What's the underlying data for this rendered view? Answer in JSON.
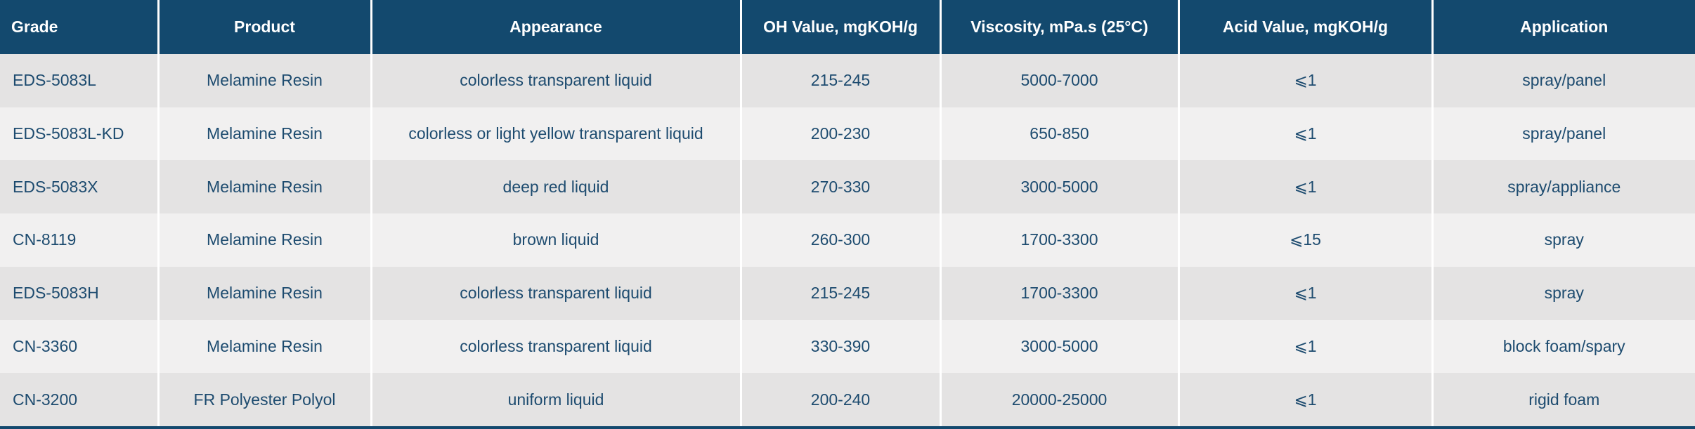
{
  "colors": {
    "header_bg": "#13496e",
    "header_text": "#ffffff",
    "body_text": "#1d4b6f",
    "row_odd_bg": "#e4e3e3",
    "row_even_bg": "#f1f0f0",
    "cell_divider": "#ffffff",
    "bottom_border": "#13496e"
  },
  "table": {
    "headers": [
      "Grade",
      "Product",
      "Appearance",
      "OH Value, mgKOH/g",
      "Viscosity, mPa.s (25°C)",
      "Acid Value, mgKOH/g",
      "Application"
    ],
    "rows": [
      [
        "EDS-5083L",
        "Melamine Resin",
        "colorless transparent liquid",
        "215-245",
        "5000-7000",
        "⩽1",
        "spray/panel"
      ],
      [
        "EDS-5083L-KD",
        "Melamine Resin",
        "colorless or light yellow transparent liquid",
        "200-230",
        "650-850",
        "⩽1",
        "spray/panel"
      ],
      [
        "EDS-5083X",
        "Melamine Resin",
        "deep red liquid",
        "270-330",
        "3000-5000",
        "⩽1",
        "spray/appliance"
      ],
      [
        "CN-8119",
        "Melamine Resin",
        "brown liquid",
        "260-300",
        "1700-3300",
        "⩽15",
        "spray"
      ],
      [
        "EDS-5083H",
        "Melamine Resin",
        "colorless transparent liquid",
        "215-245",
        "1700-3300",
        "⩽1",
        "spray"
      ],
      [
        "CN-3360",
        "Melamine Resin",
        "colorless transparent liquid",
        "330-390",
        "3000-5000",
        "⩽1",
        "block foam/spary"
      ],
      [
        "CN-3200",
        "FR Polyester Polyol",
        "uniform liquid",
        "200-240",
        "20000-25000",
        "⩽1",
        "rigid foam"
      ]
    ]
  }
}
